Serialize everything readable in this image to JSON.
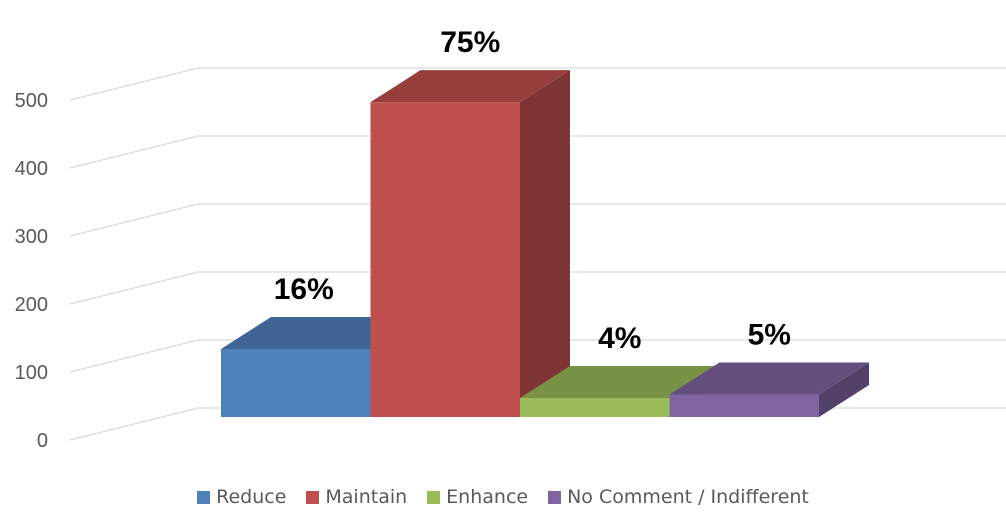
{
  "chart_data": {
    "type": "bar",
    "title": "",
    "xlabel": "",
    "ylabel": "",
    "ylim": [
      0,
      500
    ],
    "yticks": [
      "0",
      "100",
      "200",
      "300",
      "400",
      "500"
    ],
    "grid": true,
    "three_d": true,
    "legend_position": "bottom",
    "series": [
      {
        "name": "Reduce",
        "value": 100,
        "label": "16%",
        "color": "#4F81BD"
      },
      {
        "name": "Maintain",
        "value": 463,
        "label": "75%",
        "color": "#C0504D"
      },
      {
        "name": "Enhance",
        "value": 28,
        "label": "4%",
        "color": "#9BBB59"
      },
      {
        "name": "No Comment / Indifferent",
        "value": 33,
        "label": "5%",
        "color": "#8064A2"
      }
    ]
  }
}
